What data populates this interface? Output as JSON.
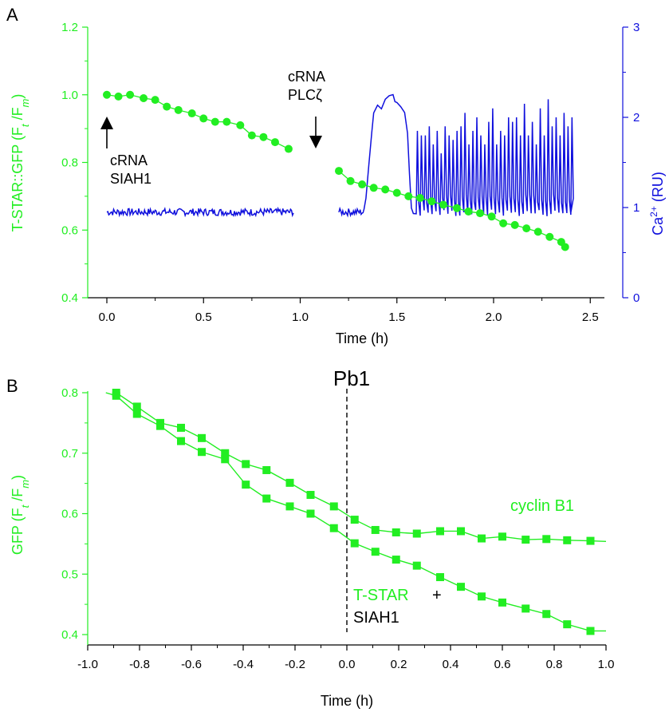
{
  "colors": {
    "green": "#22ee22",
    "blue": "#1010dd",
    "black": "#000000"
  },
  "chart_data": [
    {
      "panel": "A",
      "type": "scatter",
      "xlabel": "Time (h)",
      "ylabel_left": {
        "main": "T-STAR::GFP (F",
        "sub1": "t",
        "mid": " /F",
        "sub2": "m",
        "end": ")"
      },
      "ylabel_right": {
        "main": "Ca",
        "sup": "2+",
        "end": " (RU)"
      },
      "xlim": [
        -0.1,
        2.5
      ],
      "ylim_left": [
        0.4,
        1.2
      ],
      "ylim_right": [
        0,
        3
      ],
      "x_ticks": [
        "0.0",
        "0.5",
        "1.0",
        "1.5",
        "2.0",
        "2.5"
      ],
      "y_ticks_left": [
        "0.4",
        "0.6",
        "0.8",
        "1.0",
        "1.2"
      ],
      "y_ticks_right": [
        "0",
        "1",
        "2",
        "3"
      ],
      "annotations": {
        "siah1_line1": "cRNA",
        "siah1_line2": "SIAH1",
        "plc_line1": "cRNA",
        "plc_line2": "PLCζ"
      },
      "series": [
        {
          "axis": "left",
          "style": "circle",
          "color": "green",
          "segments": [
            {
              "x": [
                0.0,
                0.06,
                0.12,
                0.19,
                0.25,
                0.31,
                0.37,
                0.44,
                0.5,
                0.56,
                0.62,
                0.69,
                0.75,
                0.81,
                0.87,
                0.94
              ],
              "y": [
                1.0,
                0.995,
                1.0,
                0.99,
                0.985,
                0.965,
                0.955,
                0.945,
                0.93,
                0.92,
                0.92,
                0.91,
                0.88,
                0.875,
                0.86,
                0.84
              ]
            },
            {
              "x": [
                1.2,
                1.26,
                1.32,
                1.38,
                1.44,
                1.5,
                1.56,
                1.62,
                1.68,
                1.74,
                1.81,
                1.87,
                1.93,
                1.99,
                2.05,
                2.11,
                2.17,
                2.23,
                2.29,
                2.35,
                2.37
              ],
              "y": [
                0.775,
                0.745,
                0.735,
                0.725,
                0.72,
                0.71,
                0.7,
                0.695,
                0.685,
                0.675,
                0.665,
                0.655,
                0.65,
                0.64,
                0.62,
                0.615,
                0.605,
                0.595,
                0.58,
                0.565,
                0.55
              ]
            }
          ]
        },
        {
          "axis": "right",
          "style": "line",
          "color": "blue",
          "generated": "baseline ~0.95 from 0 to 0.97 h; baseline 1.2-1.33 h; sustained rise ~2.1-2.3 from 1.38 to 1.55 h; spikes to ~1.6-2.2 from 1.6 to 2.4 h"
        }
      ]
    },
    {
      "panel": "B",
      "type": "line",
      "xlabel": "Time (h)",
      "ylabel": {
        "main": "GFP (F",
        "sub1": "t",
        "mid": " /F",
        "sub2": "m",
        "end": ")"
      },
      "xlim": [
        -1.0,
        1.0
      ],
      "ylim": [
        0.4,
        0.8
      ],
      "x_ticks": [
        "-1.0",
        "-0.8",
        "-0.6",
        "-0.4",
        "-0.2",
        "0.0",
        "0.2",
        "0.4",
        "0.6",
        "0.8",
        "1.0"
      ],
      "y_ticks": [
        "0.4",
        "0.5",
        "0.6",
        "0.7",
        "0.8"
      ],
      "vline_label": "Pb1",
      "label_cyclin": "cyclin B1",
      "label_tstar": "T-STAR",
      "label_plus": "+",
      "label_siah": "SIAH1",
      "series": [
        {
          "label_key": "label_cyclin",
          "x": [
            -0.89,
            -0.81,
            -0.72,
            -0.64,
            -0.56,
            -0.47,
            -0.39,
            -0.31,
            -0.22,
            -0.14,
            -0.05,
            0.03,
            0.11,
            0.19,
            0.27,
            0.36,
            0.44,
            0.52,
            0.6,
            0.69,
            0.77,
            0.85,
            0.94
          ],
          "y": [
            0.8,
            0.777,
            0.75,
            0.742,
            0.725,
            0.7,
            0.682,
            0.672,
            0.651,
            0.631,
            0.612,
            0.59,
            0.573,
            0.569,
            0.567,
            0.571,
            0.571,
            0.559,
            0.562,
            0.557,
            0.558,
            0.556,
            0.555
          ],
          "x_end": 1.0,
          "y_end": 0.554
        },
        {
          "label_key": "label_tstar",
          "x": [
            -0.89,
            -0.81,
            -0.72,
            -0.64,
            -0.56,
            -0.47,
            -0.39,
            -0.31,
            -0.22,
            -0.14,
            -0.05,
            0.03,
            0.11,
            0.19,
            0.27,
            0.36,
            0.44,
            0.52,
            0.6,
            0.69,
            0.77,
            0.85,
            0.94
          ],
          "y": [
            0.795,
            0.765,
            0.745,
            0.72,
            0.702,
            0.69,
            0.648,
            0.625,
            0.612,
            0.6,
            0.576,
            0.551,
            0.537,
            0.524,
            0.514,
            0.495,
            0.479,
            0.463,
            0.453,
            0.443,
            0.434,
            0.417,
            0.406
          ],
          "x_start": -0.93,
          "y_start": 0.8,
          "x_end": 1.0,
          "y_end": 0.406
        }
      ]
    }
  ]
}
